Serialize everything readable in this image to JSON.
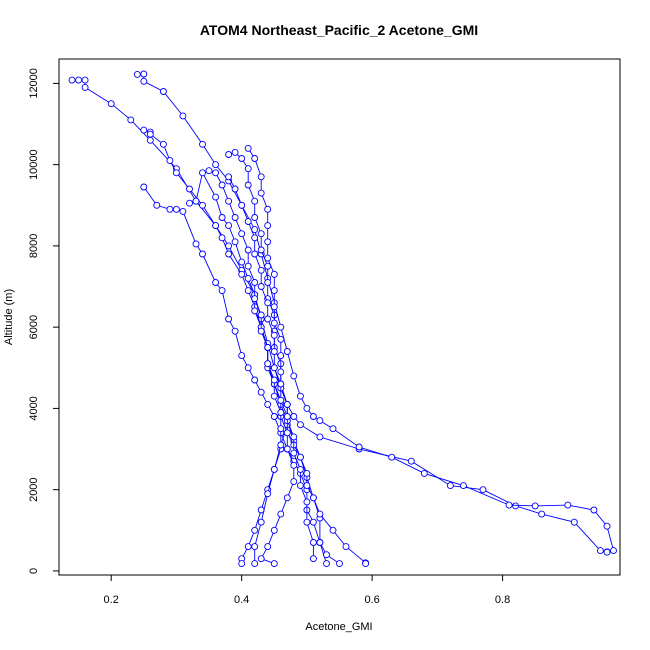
{
  "chart_data": {
    "type": "line",
    "title": "ATOM4 Northeast_Pacific_2 Acetone_GMI",
    "xlabel": "Acetone_GMI",
    "ylabel": "Altitude (m)",
    "xlim": [
      0.12,
      0.98
    ],
    "ylim": [
      -100,
      12600
    ],
    "x_ticks": [
      0.2,
      0.4,
      0.6,
      0.8
    ],
    "y_ticks": [
      0,
      2000,
      4000,
      6000,
      8000,
      10000,
      12000
    ],
    "x_tick_labels": [
      "0.2",
      "0.4",
      "0.6",
      "0.8"
    ],
    "y_tick_labels": [
      "0",
      "2000",
      "4000",
      "6000",
      "8000",
      "10000",
      "12000"
    ],
    "grid": false,
    "series_color": "#0000ff",
    "marker": "open-circle",
    "series": [
      {
        "x": [
          0.14,
          0.15,
          0.16,
          0.16,
          0.2,
          0.23,
          0.26,
          0.3,
          0.33,
          0.36,
          0.38,
          0.4,
          0.42,
          0.43,
          0.44,
          0.45,
          0.46,
          0.47,
          0.48,
          0.49,
          0.52,
          0.58,
          0.66,
          0.72,
          0.77,
          0.82,
          0.86,
          0.91,
          0.95,
          0.96,
          0.96
        ],
        "y": [
          12080,
          12080,
          12080,
          11900,
          11500,
          11100,
          10600,
          9900,
          9100,
          8500,
          8000,
          7400,
          6800,
          6200,
          5600,
          5000,
          4500,
          4100,
          3800,
          3600,
          3300,
          3000,
          2700,
          2100,
          2000,
          1600,
          1400,
          1200,
          500,
          470,
          460
        ]
      },
      {
        "x": [
          0.24,
          0.25,
          0.25,
          0.28,
          0.31,
          0.34,
          0.36,
          0.38,
          0.4,
          0.42,
          0.43,
          0.44,
          0.45,
          0.46,
          0.47,
          0.48,
          0.49,
          0.5,
          0.51,
          0.52,
          0.54,
          0.58,
          0.63,
          0.68,
          0.74,
          0.81,
          0.85,
          0.9,
          0.94,
          0.96,
          0.97
        ],
        "y": [
          12220,
          12230,
          12050,
          11800,
          11200,
          10500,
          10000,
          9600,
          9000,
          8400,
          7800,
          7200,
          6600,
          6000,
          5400,
          4800,
          4300,
          4000,
          3800,
          3700,
          3500,
          3050,
          2800,
          2400,
          2100,
          1620,
          1600,
          1620,
          1500,
          1100,
          500
        ]
      },
      {
        "x": [
          0.25,
          0.26,
          0.26,
          0.28,
          0.29,
          0.3,
          0.32,
          0.34,
          0.36,
          0.37,
          0.38,
          0.4,
          0.41,
          0.42,
          0.43,
          0.44,
          0.44,
          0.45,
          0.46,
          0.47,
          0.48,
          0.49,
          0.5,
          0.51,
          0.52,
          0.52,
          0.53
        ],
        "y": [
          10850,
          10800,
          10750,
          10500,
          10100,
          9800,
          9400,
          9000,
          8500,
          8200,
          7800,
          7300,
          6900,
          6500,
          6000,
          5500,
          5100,
          4600,
          4100,
          3700,
          3200,
          2800,
          2300,
          1800,
          1300,
          700,
          180
        ]
      },
      {
        "x": [
          0.25,
          0.27,
          0.29,
          0.3,
          0.31,
          0.33,
          0.34,
          0.36,
          0.37,
          0.38,
          0.39,
          0.4,
          0.41,
          0.42,
          0.43,
          0.44,
          0.45,
          0.46,
          0.47,
          0.48,
          0.49,
          0.5,
          0.5,
          0.51,
          0.52,
          0.53,
          0.55
        ],
        "y": [
          9450,
          9000,
          8900,
          8900,
          8850,
          8050,
          7800,
          7100,
          6900,
          6200,
          5900,
          5300,
          5000,
          4700,
          4400,
          4100,
          3800,
          3400,
          3000,
          2700,
          2400,
          2000,
          1500,
          1200,
          700,
          400,
          180
        ]
      },
      {
        "x": [
          0.32,
          0.33,
          0.34,
          0.36,
          0.37,
          0.38,
          0.39,
          0.4,
          0.41,
          0.42,
          0.42,
          0.43,
          0.44,
          0.44,
          0.45,
          0.46,
          0.46,
          0.47,
          0.48,
          0.49,
          0.5,
          0.5,
          0.51,
          0.52,
          0.54,
          0.56,
          0.59,
          0.59
        ],
        "y": [
          9050,
          9100,
          9800,
          9200,
          8700,
          8500,
          8100,
          7600,
          7200,
          6800,
          6400,
          6000,
          5500,
          5000,
          4600,
          4200,
          3800,
          3400,
          3100,
          2800,
          2400,
          2100,
          1800,
          1400,
          1000,
          600,
          200,
          180
        ]
      },
      {
        "x": [
          0.35,
          0.36,
          0.37,
          0.38,
          0.39,
          0.4,
          0.41,
          0.41,
          0.42,
          0.42,
          0.43,
          0.43,
          0.44,
          0.44,
          0.45,
          0.45,
          0.46,
          0.46,
          0.46,
          0.45,
          0.44,
          0.43,
          0.42,
          0.41,
          0.4,
          0.4
        ],
        "y": [
          9850,
          9800,
          9500,
          9100,
          8700,
          8300,
          7900,
          7500,
          7100,
          6700,
          6300,
          5900,
          5500,
          5100,
          4700,
          4300,
          3900,
          3500,
          3000,
          2500,
          2000,
          1500,
          1000,
          600,
          300,
          180
        ]
      },
      {
        "x": [
          0.38,
          0.39,
          0.4,
          0.41,
          0.41,
          0.42,
          0.42,
          0.43,
          0.43,
          0.44,
          0.44,
          0.44,
          0.45,
          0.45,
          0.45,
          0.46,
          0.46,
          0.47,
          0.47,
          0.46,
          0.45,
          0.44,
          0.43,
          0.42,
          0.42
        ],
        "y": [
          10250,
          10300,
          10150,
          9900,
          9500,
          9100,
          8700,
          8300,
          7900,
          7500,
          7100,
          6700,
          6300,
          5900,
          5500,
          5100,
          4600,
          4100,
          3600,
          3100,
          2500,
          1900,
          1200,
          600,
          180
        ]
      },
      {
        "x": [
          0.41,
          0.42,
          0.43,
          0.43,
          0.44,
          0.44,
          0.44,
          0.44,
          0.45,
          0.45,
          0.45,
          0.45,
          0.46,
          0.46,
          0.46,
          0.46,
          0.47,
          0.47,
          0.48,
          0.48,
          0.49,
          0.49,
          0.5,
          0.5,
          0.51,
          0.51
        ],
        "y": [
          10400,
          10150,
          9700,
          9300,
          8900,
          8500,
          8100,
          7700,
          7300,
          6900,
          6500,
          6100,
          5700,
          5300,
          4900,
          4500,
          4100,
          3700,
          3300,
          2900,
          2500,
          2100,
          1700,
          1200,
          700,
          300
        ]
      },
      {
        "x": [
          0.38,
          0.39,
          0.4,
          0.41,
          0.42,
          0.42,
          0.43,
          0.43,
          0.44,
          0.44,
          0.45,
          0.45,
          0.45,
          0.46,
          0.46,
          0.47,
          0.47,
          0.47,
          0.48,
          0.48,
          0.47,
          0.46,
          0.45,
          0.44,
          0.43,
          0.45
        ],
        "y": [
          9700,
          9400,
          9000,
          8600,
          8200,
          7800,
          7400,
          7000,
          6600,
          6200,
          5800,
          5400,
          5000,
          4600,
          4200,
          3800,
          3400,
          3000,
          2600,
          2200,
          1800,
          1400,
          1000,
          600,
          300,
          180
        ]
      }
    ]
  }
}
